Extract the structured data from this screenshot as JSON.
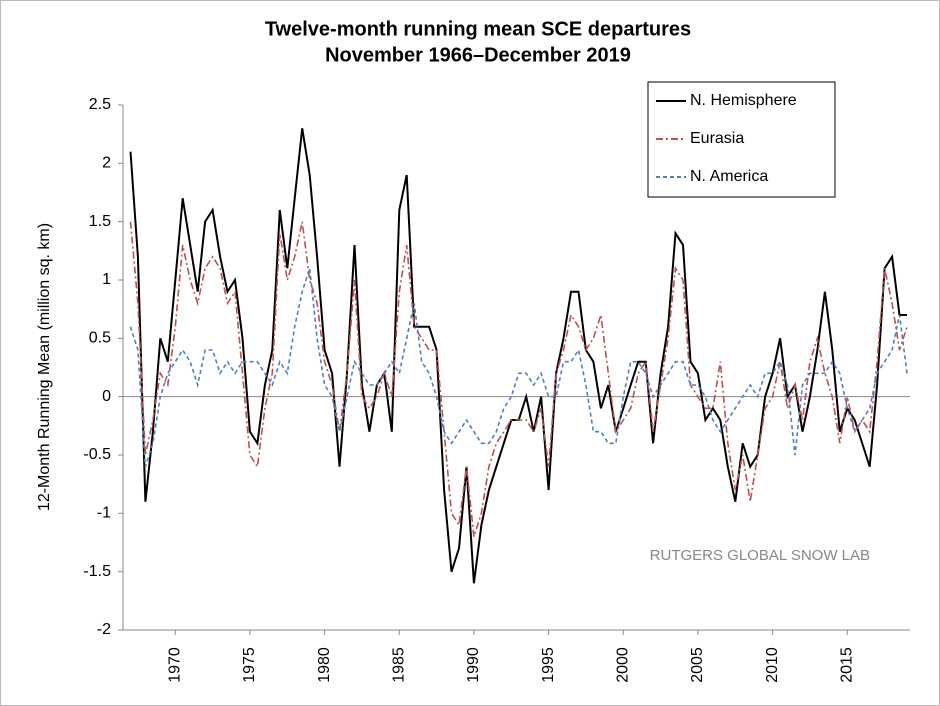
{
  "chart_data": {
    "type": "line",
    "title": "Twelve-month running mean SCE departures",
    "subtitle": "November 1966–December 2019",
    "y_label": "12-Month Running Mean (million sq. km)",
    "annotation": "RUTGERS GLOBAL SNOW LAB",
    "legend": "upper right",
    "xlim": [
      1966.5,
      2019.2
    ],
    "xticks": [
      1970,
      1975,
      1980,
      1985,
      1990,
      1995,
      2000,
      2005,
      2010,
      2015
    ],
    "ylim": [
      -2,
      2.5
    ],
    "yticks": [
      2.5,
      2,
      1.5,
      1,
      0.5,
      0,
      -0.5,
      -1,
      -1.5,
      -2
    ],
    "x": [
      1967,
      1967.5,
      1968,
      1968.5,
      1969,
      1969.5,
      1970,
      1970.5,
      1971,
      1971.5,
      1972,
      1972.5,
      1973,
      1973.5,
      1974,
      1974.5,
      1975,
      1975.5,
      1976,
      1976.5,
      1977,
      1977.5,
      1978,
      1978.5,
      1979,
      1979.5,
      1980,
      1980.5,
      1981,
      1981.5,
      1982,
      1982.5,
      1983,
      1983.5,
      1984,
      1984.5,
      1985,
      1985.5,
      1986,
      1986.5,
      1987,
      1987.5,
      1988,
      1988.5,
      1989,
      1989.5,
      1990,
      1990.5,
      1991,
      1991.5,
      1992,
      1992.5,
      1993,
      1993.5,
      1994,
      1994.5,
      1995,
      1995.5,
      1996,
      1996.5,
      1997,
      1997.5,
      1998,
      1998.5,
      1999,
      1999.5,
      2000,
      2000.5,
      2001,
      2001.5,
      2002,
      2002.5,
      2003,
      2003.5,
      2004,
      2004.5,
      2005,
      2005.5,
      2006,
      2006.5,
      2007,
      2007.5,
      2008,
      2008.5,
      2009,
      2009.5,
      2010,
      2010.5,
      2011,
      2011.5,
      2012,
      2012.5,
      2013,
      2013.5,
      2014,
      2014.5,
      2015,
      2015.5,
      2016,
      2016.5,
      2017,
      2017.5,
      2018,
      2018.5,
      2019
    ],
    "series": [
      {
        "name": "N. Hemisphere",
        "color": "#000000",
        "linestyle": "solid",
        "values": [
          2.1,
          1.2,
          -0.9,
          -0.3,
          0.5,
          0.3,
          1.0,
          1.7,
          1.3,
          0.9,
          1.5,
          1.6,
          1.2,
          0.9,
          1.0,
          0.5,
          -0.3,
          -0.4,
          0.1,
          0.4,
          1.6,
          1.1,
          1.7,
          2.3,
          1.9,
          1.2,
          0.4,
          0.2,
          -0.6,
          0.2,
          1.3,
          0.1,
          -0.3,
          0.1,
          0.2,
          -0.3,
          1.6,
          1.9,
          0.6,
          0.6,
          0.6,
          0.4,
          -0.8,
          -1.5,
          -1.3,
          -0.6,
          -1.6,
          -1.1,
          -0.8,
          -0.6,
          -0.4,
          -0.2,
          -0.2,
          0.0,
          -0.3,
          0.0,
          -0.8,
          0.2,
          0.5,
          0.9,
          0.9,
          0.4,
          0.3,
          -0.1,
          0.1,
          -0.3,
          -0.1,
          0.1,
          0.3,
          0.3,
          -0.4,
          0.2,
          0.6,
          1.4,
          1.3,
          0.3,
          0.2,
          -0.2,
          -0.1,
          -0.2,
          -0.6,
          -0.9,
          -0.4,
          -0.6,
          -0.5,
          0.0,
          0.2,
          0.5,
          0.0,
          0.1,
          -0.3,
          0.0,
          0.4,
          0.9,
          0.4,
          -0.3,
          -0.1,
          -0.2,
          -0.4,
          -0.6,
          0.1,
          1.1,
          1.2,
          0.7,
          0.7
        ]
      },
      {
        "name": "Eurasia",
        "color": "#c0504d",
        "linestyle": "dashdot",
        "values": [
          1.5,
          0.8,
          -0.5,
          -0.2,
          0.2,
          0.1,
          0.6,
          1.3,
          1.0,
          0.8,
          1.1,
          1.2,
          1.1,
          0.8,
          0.9,
          0.2,
          -0.5,
          -0.6,
          -0.1,
          0.2,
          1.4,
          1.0,
          1.2,
          1.5,
          1.0,
          0.8,
          0.3,
          0.1,
          -0.3,
          0.2,
          1.0,
          0.0,
          -0.1,
          0.0,
          0.2,
          0.0,
          0.9,
          1.3,
          0.6,
          0.5,
          0.4,
          0.4,
          -0.3,
          -1.0,
          -1.1,
          -0.6,
          -1.2,
          -1.0,
          -0.6,
          -0.4,
          -0.3,
          -0.2,
          -0.2,
          -0.2,
          -0.3,
          -0.1,
          -0.6,
          0.2,
          0.4,
          0.7,
          0.6,
          0.4,
          0.5,
          0.7,
          0.2,
          -0.3,
          -0.2,
          -0.1,
          0.2,
          0.3,
          -0.3,
          0.1,
          0.5,
          1.1,
          1.0,
          0.1,
          0.0,
          -0.1,
          -0.1,
          0.3,
          -0.4,
          -0.8,
          -0.5,
          -0.9,
          -0.5,
          -0.1,
          0.0,
          0.3,
          -0.1,
          0.1,
          -0.2,
          0.3,
          0.5,
          0.2,
          0.0,
          -0.4,
          0.0,
          -0.3,
          -0.2,
          -0.3,
          0.3,
          1.1,
          0.8,
          0.4,
          0.6
        ]
      },
      {
        "name": "N. America",
        "color": "#4f81bd",
        "linestyle": "dashed",
        "values": [
          0.6,
          0.4,
          -0.6,
          -0.4,
          0.0,
          0.2,
          0.3,
          0.4,
          0.3,
          0.1,
          0.4,
          0.4,
          0.2,
          0.3,
          0.2,
          0.3,
          0.3,
          0.3,
          0.2,
          0.1,
          0.3,
          0.2,
          0.6,
          0.9,
          1.1,
          0.5,
          0.1,
          0.0,
          -0.3,
          0.0,
          0.3,
          0.2,
          0.1,
          0.1,
          0.2,
          0.3,
          0.2,
          0.5,
          0.8,
          0.3,
          0.2,
          0.0,
          -0.3,
          -0.4,
          -0.3,
          -0.2,
          -0.3,
          -0.4,
          -0.4,
          -0.3,
          -0.1,
          0.0,
          0.2,
          0.2,
          0.1,
          0.2,
          0.0,
          0.0,
          0.3,
          0.3,
          0.4,
          0.1,
          -0.3,
          -0.3,
          -0.4,
          -0.4,
          0.0,
          0.3,
          0.3,
          0.2,
          0.0,
          0.1,
          0.2,
          0.3,
          0.3,
          0.1,
          0.1,
          0.0,
          -0.2,
          -0.3,
          -0.2,
          -0.1,
          0.0,
          0.1,
          0.0,
          0.2,
          0.2,
          0.3,
          0.1,
          -0.5,
          0.1,
          0.2,
          0.2,
          0.2,
          0.3,
          0.2,
          -0.1,
          -0.3,
          -0.2,
          -0.1,
          0.2,
          0.3,
          0.4,
          0.7,
          0.2
        ]
      }
    ]
  }
}
